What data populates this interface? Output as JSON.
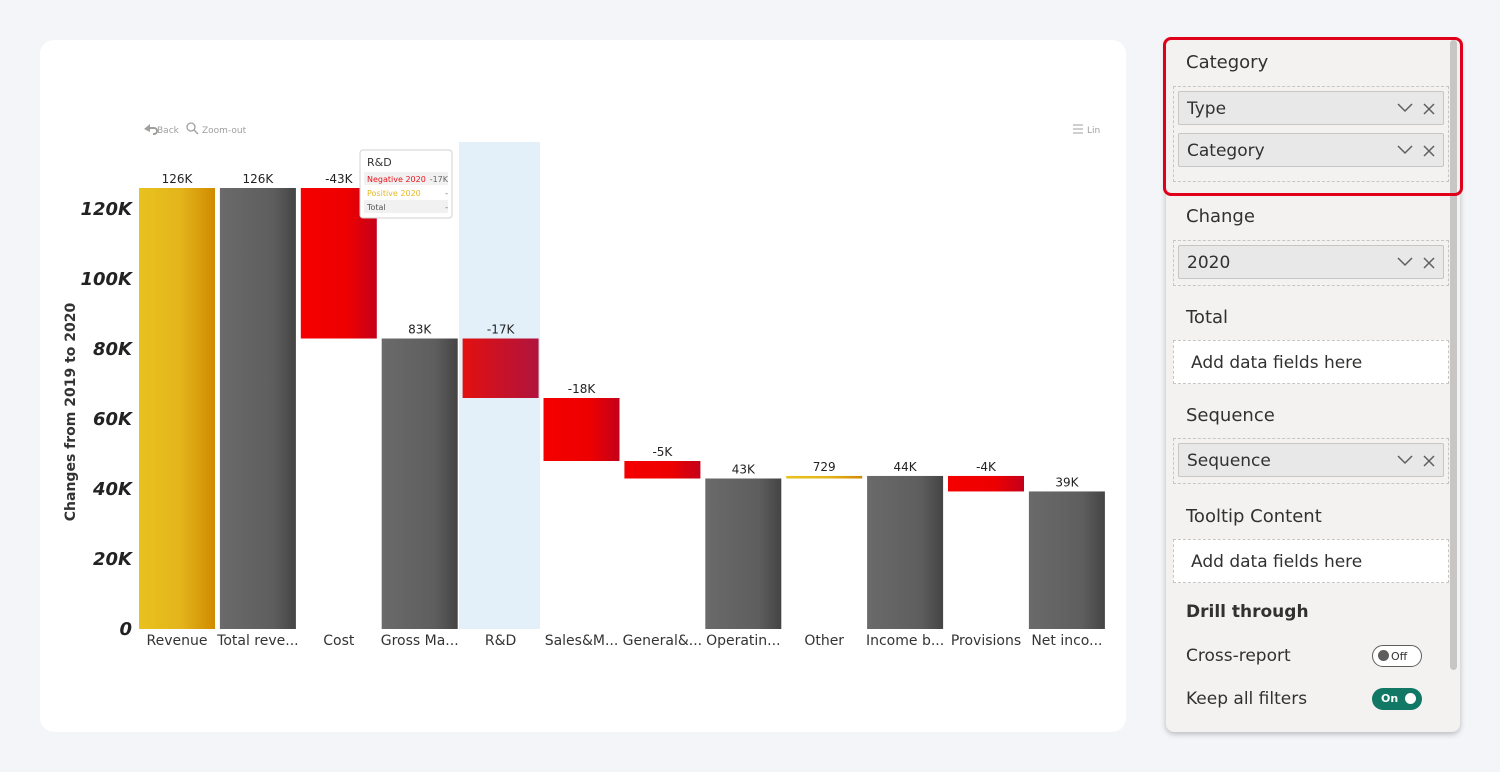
{
  "toolbar": {
    "back_label": "Back",
    "zoom_label": "Zoom-out",
    "lin_label": "Lin"
  },
  "tooltip": {
    "title": "R&D",
    "rows": [
      {
        "label": "Negative 2020",
        "value": "-17K",
        "color": "#e8141c"
      },
      {
        "label": "Positive 2020",
        "value": "-",
        "color": "#e8b81f"
      },
      {
        "label": "Total",
        "value": "-",
        "color": "#555555"
      }
    ]
  },
  "colors": {
    "positive": "#e6b91c",
    "negative": "#ef0000",
    "total": "#5f5f5f",
    "highlight": "#e3f0f9"
  },
  "chart_data": {
    "type": "bar",
    "subtype": "waterfall",
    "ylabel": "Changes from 2019 to 2020",
    "ylim": [
      0,
      126000
    ],
    "yticks": [
      {
        "value": 0,
        "label": "0"
      },
      {
        "value": 20000,
        "label": "20K"
      },
      {
        "value": 40000,
        "label": "40K"
      },
      {
        "value": 60000,
        "label": "60K"
      },
      {
        "value": 80000,
        "label": "80K"
      },
      {
        "value": 100000,
        "label": "100K"
      },
      {
        "value": 120000,
        "label": "120K"
      }
    ],
    "highlighted_category": "R&D",
    "categories": [
      "Revenue",
      "Total reve...",
      "Cost",
      "Gross Ma...",
      "R&D",
      "Sales&M...",
      "General&...",
      "Operatin...",
      "Other",
      "Income b...",
      "Provisions",
      "Net inco..."
    ],
    "bars": [
      {
        "label": "126K",
        "kind": "positive",
        "start": 0,
        "end": 126000
      },
      {
        "label": "126K",
        "kind": "total",
        "start": 0,
        "end": 126000
      },
      {
        "label": "-43K",
        "kind": "negative",
        "start": 126000,
        "end": 83000
      },
      {
        "label": "83K",
        "kind": "total",
        "start": 0,
        "end": 83000
      },
      {
        "label": "-17K",
        "kind": "negative",
        "start": 83000,
        "end": 66000
      },
      {
        "label": "-18K",
        "kind": "negative",
        "start": 66000,
        "end": 48000
      },
      {
        "label": "-5K",
        "kind": "negative",
        "start": 48000,
        "end": 43000
      },
      {
        "label": "43K",
        "kind": "total",
        "start": 0,
        "end": 43000
      },
      {
        "label": "729",
        "kind": "positive",
        "start": 43000,
        "end": 43729
      },
      {
        "label": "44K",
        "kind": "total",
        "start": 0,
        "end": 43729
      },
      {
        "label": "-4K",
        "kind": "negative",
        "start": 43729,
        "end": 39300
      },
      {
        "label": "39K",
        "kind": "total",
        "start": 0,
        "end": 39300
      }
    ]
  },
  "panel": {
    "category": {
      "title": "Category",
      "fields": [
        "Type",
        "Category"
      ]
    },
    "change": {
      "title": "Change",
      "fields": [
        "2020"
      ]
    },
    "total": {
      "title": "Total",
      "placeholder": "Add data fields here"
    },
    "sequence": {
      "title": "Sequence",
      "fields": [
        "Sequence"
      ]
    },
    "tooltip_content": {
      "title": "Tooltip Content",
      "placeholder": "Add data fields here"
    },
    "drill_through": {
      "title": "Drill through",
      "cross_report": {
        "label": "Cross-report",
        "state": "Off"
      },
      "keep_filters": {
        "label": "Keep all filters",
        "state": "On"
      }
    }
  }
}
